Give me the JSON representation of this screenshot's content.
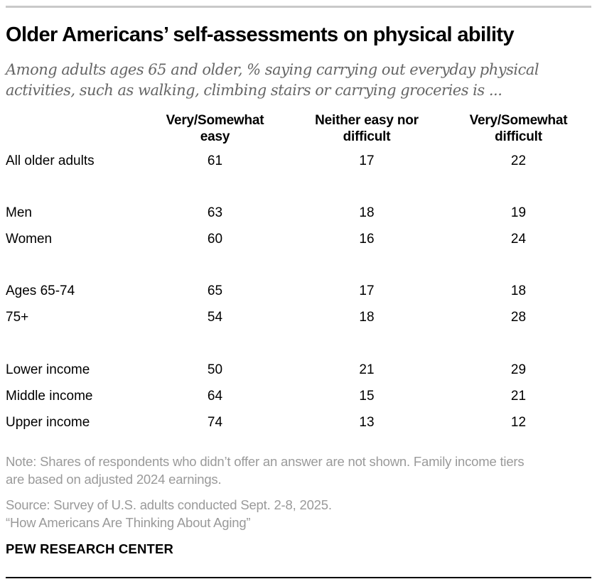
{
  "header": {
    "title": "Older Americans’ self-assessments on physical ability",
    "subtitle_lines": [
      "Among adults ages 65 and older, % saying carrying out everyday physical",
      "activities, such as walking, climbing stairs or carrying groceries is ..."
    ]
  },
  "table": {
    "columns": [
      {
        "line1": "Very/Somewhat",
        "line2": "easy"
      },
      {
        "line1": "Neither easy nor",
        "line2": "difficult"
      },
      {
        "line1": "Very/Somewhat",
        "line2": "difficult"
      }
    ],
    "rows": [
      {
        "label": "All older adults",
        "easy": "61",
        "neither": "17",
        "difficult": "22"
      },
      {
        "label": "Men",
        "easy": "63",
        "neither": "18",
        "difficult": "19"
      },
      {
        "label": "Women",
        "easy": "60",
        "neither": "16",
        "difficult": "24"
      },
      {
        "label": "Ages 65-74",
        "easy": "65",
        "neither": "17",
        "difficult": "18"
      },
      {
        "label": "75+",
        "easy": "54",
        "neither": "18",
        "difficult": "28"
      },
      {
        "label": "Lower income",
        "easy": "50",
        "neither": "21",
        "difficult": "29"
      },
      {
        "label": "Middle income",
        "easy": "64",
        "neither": "15",
        "difficult": "21"
      },
      {
        "label": "Upper income",
        "easy": "74",
        "neither": "13",
        "difficult": "12"
      }
    ]
  },
  "footer": {
    "note_lines": [
      "Note: Shares of respondents who didn’t offer an answer are not shown. Family income tiers",
      "are based on adjusted 2024 earnings."
    ],
    "source": "Source: Survey of U.S. adults conducted Sept. 2-8, 2025.",
    "report": "“How Americans Are Thinking About Aging”",
    "brand": "PEW RESEARCH CENTER"
  },
  "colors": {
    "background": "#ffffff",
    "title_text": "#000000",
    "subtitle_text": "#666666",
    "table_text": "#000000",
    "footer_text": "#9a9a9a",
    "rule_top": "#c9c9c9",
    "rule_bottom": "#000000"
  },
  "chart_data": {
    "type": "table",
    "title": "Older Americans’ self-assessments on physical ability",
    "subtitle": "Among adults ages 65 and older, % saying carrying out everyday physical activities, such as walking, climbing stairs or carrying groceries is ...",
    "categories": [
      "All older adults",
      "Men",
      "Women",
      "Ages 65-74",
      "75+",
      "Lower income",
      "Middle income",
      "Upper income"
    ],
    "series": [
      {
        "name": "Very/Somewhat easy",
        "values": [
          61,
          63,
          60,
          65,
          54,
          50,
          64,
          74
        ]
      },
      {
        "name": "Neither easy nor difficult",
        "values": [
          17,
          18,
          16,
          17,
          18,
          21,
          15,
          13
        ]
      },
      {
        "name": "Very/Somewhat difficult",
        "values": [
          22,
          19,
          24,
          18,
          28,
          29,
          21,
          12
        ]
      }
    ],
    "units": "percent",
    "grid": false,
    "legend_position": "column-headers"
  }
}
